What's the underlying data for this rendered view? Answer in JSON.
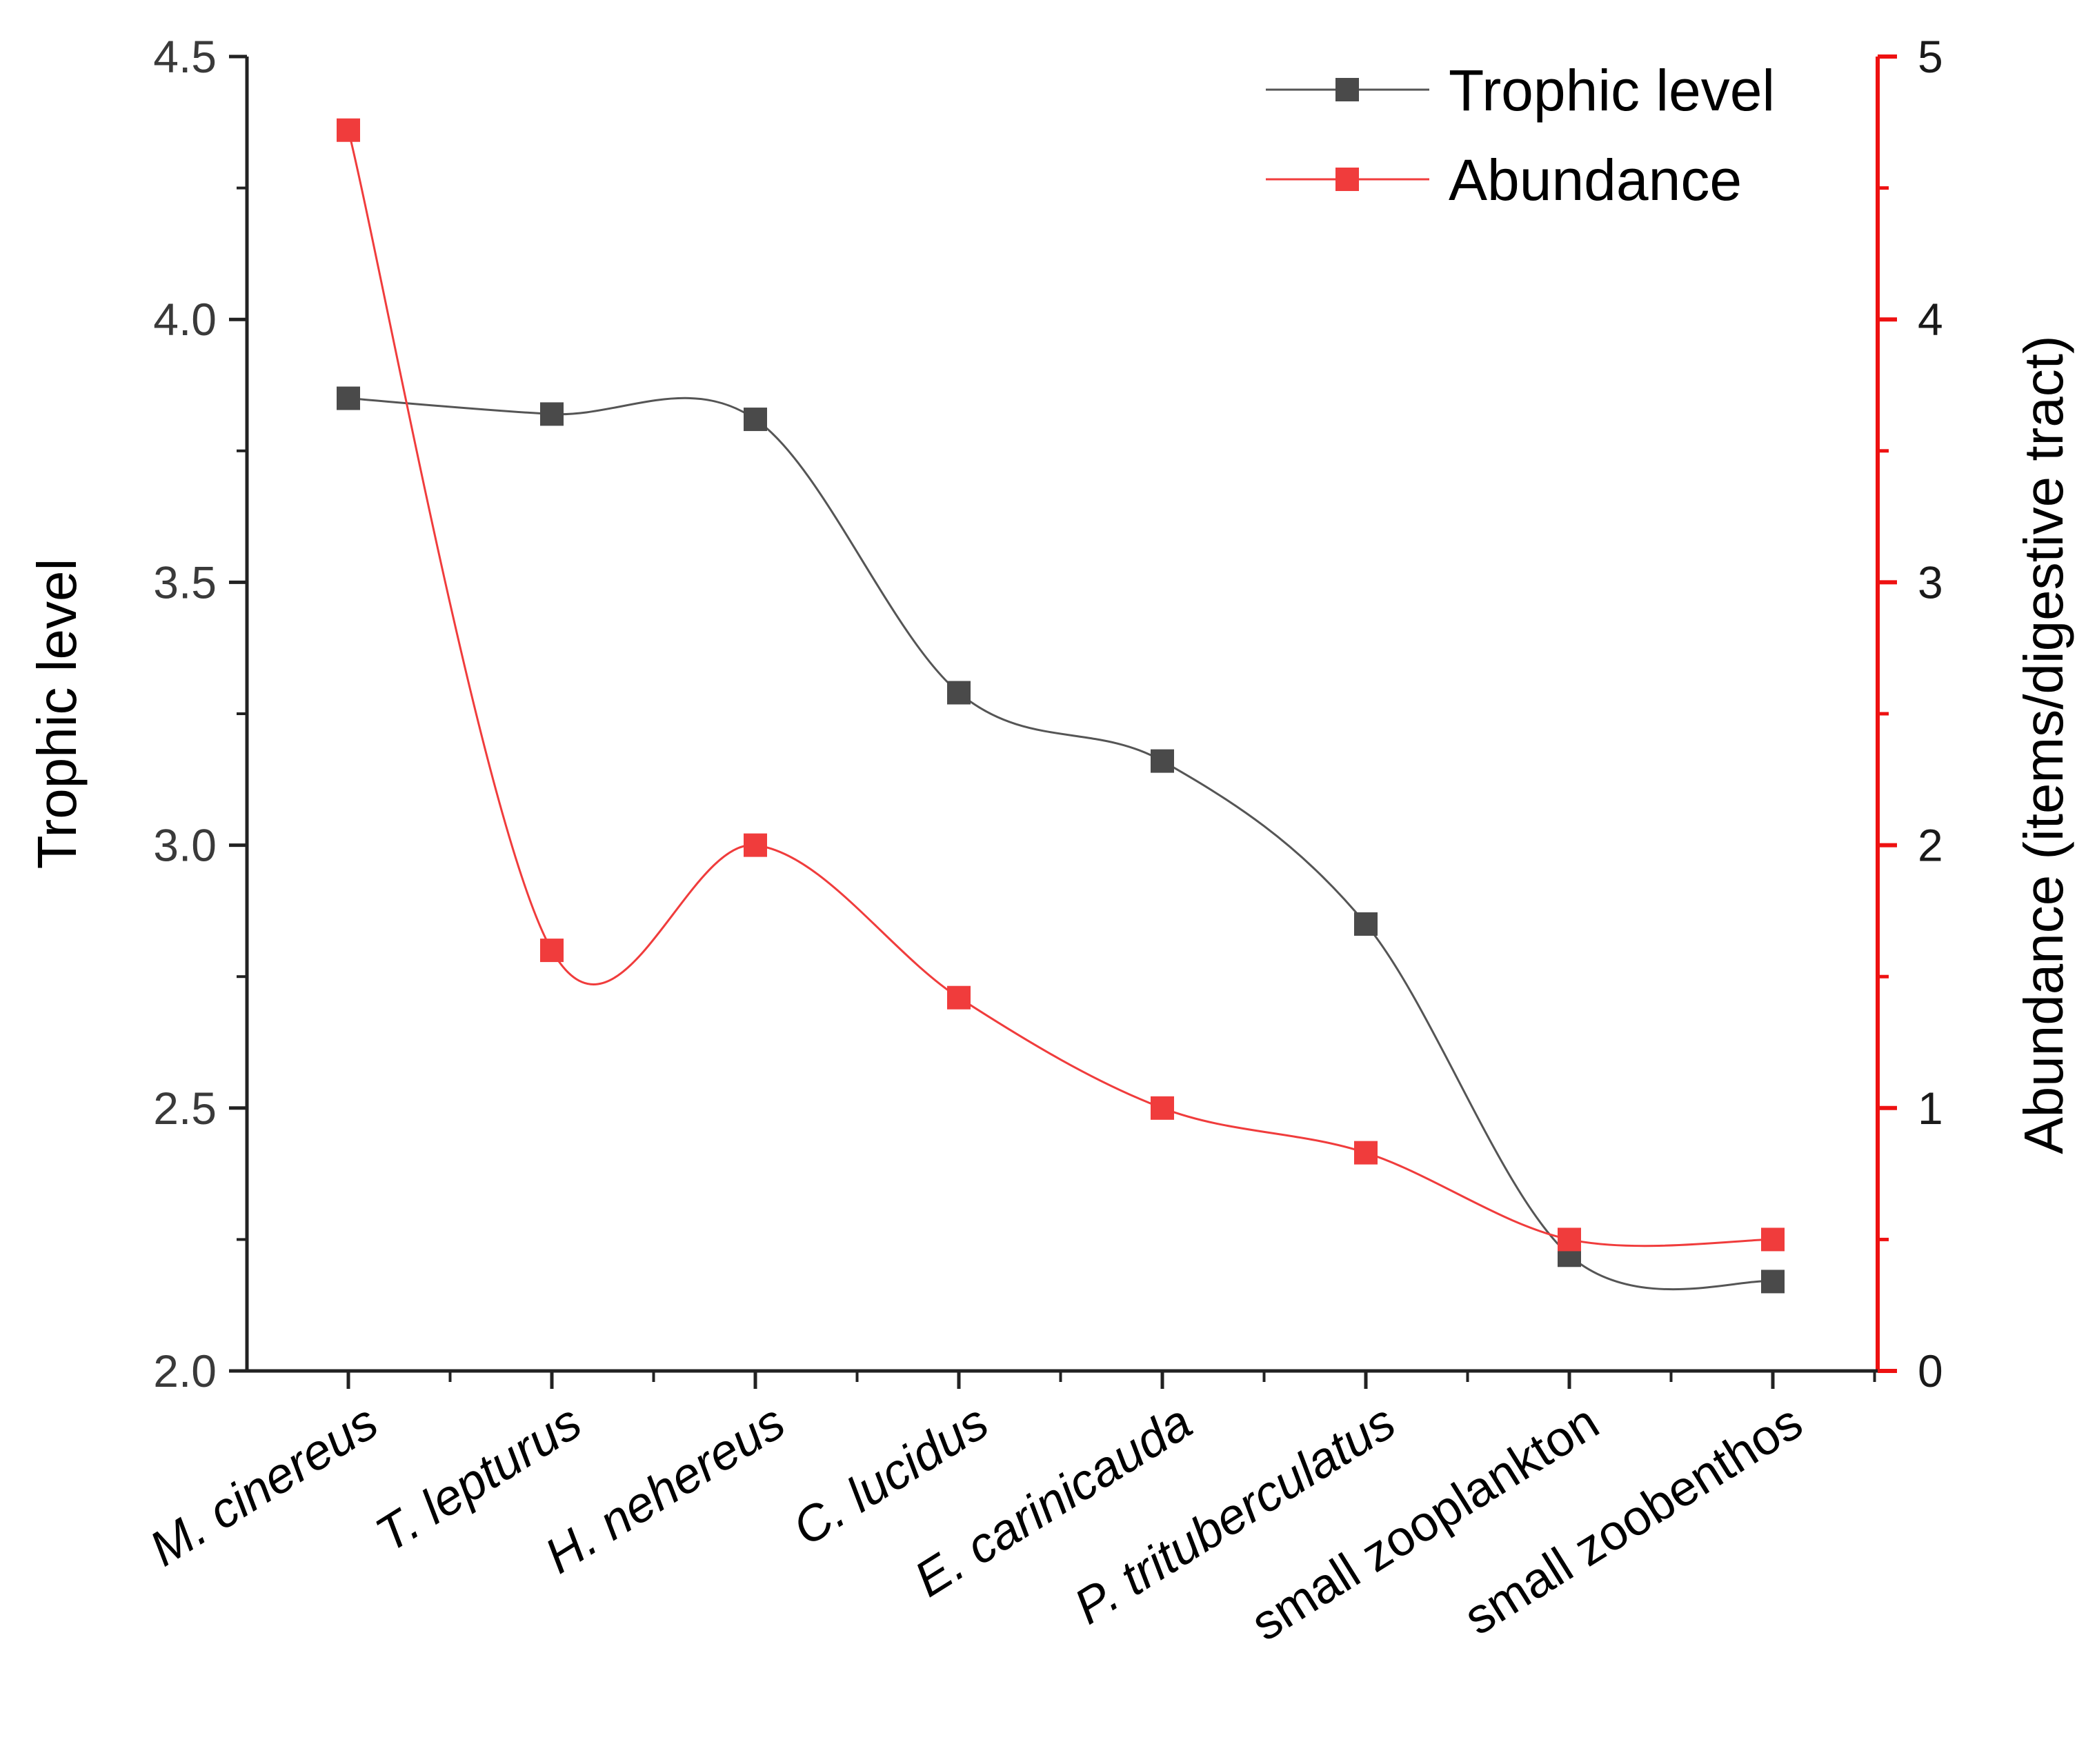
{
  "chart_data": {
    "type": "line",
    "title": "",
    "categories": [
      "M. cinereus",
      "T. lepturus",
      "H. nehereus",
      "C. lucidus",
      "E. carinicauda",
      "P. trituberculatus",
      "small zooplankton",
      "small zoobenthos"
    ],
    "category_italic": [
      true,
      true,
      true,
      true,
      true,
      true,
      false,
      false
    ],
    "xlabel": "",
    "ylabel": "Trophic level",
    "y2label": "Abundance (items/digestive tract)",
    "ylim": [
      2.0,
      4.5
    ],
    "y2lim": [
      0,
      5
    ],
    "yticks": [
      "2.0",
      "2.5",
      "3.0",
      "3.5",
      "4.0",
      "4.5"
    ],
    "y2ticks": [
      "0",
      "1",
      "2",
      "3",
      "4",
      "5"
    ],
    "grid": false,
    "legend_position": "top-right",
    "series": [
      {
        "name": "Trophic level",
        "axis": "left",
        "color": "#4a4a4a",
        "line_color": "#555555",
        "values": [
          3.85,
          3.82,
          3.81,
          3.29,
          3.16,
          2.85,
          2.22,
          2.17
        ]
      },
      {
        "name": "Abundance",
        "axis": "right",
        "color": "#f03c3c",
        "line_color": "#f03c3c",
        "values": [
          4.72,
          1.6,
          2.0,
          1.42,
          1.0,
          0.83,
          0.5,
          0.5
        ]
      }
    ],
    "right_axis_color": "#ee1111"
  }
}
